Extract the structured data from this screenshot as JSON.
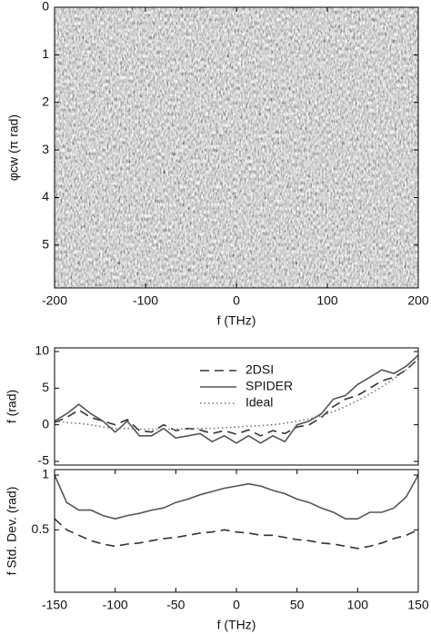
{
  "chart_data": [
    {
      "type": "heatmap",
      "xlabel": "f (THz)",
      "ylabel": "φcw (π rad)",
      "xlim": [
        -200,
        200
      ],
      "xticks": [
        -200,
        -100,
        0,
        100,
        200
      ],
      "ylim": [
        0,
        5.9
      ],
      "yticks": [
        0,
        1,
        2,
        3,
        4,
        5
      ],
      "y_inverted": true
    },
    {
      "type": "line",
      "ylabel": "f (rad)",
      "x": [
        -150,
        -140,
        -130,
        -120,
        -110,
        -100,
        -90,
        -80,
        -70,
        -60,
        -50,
        -40,
        -30,
        -20,
        -10,
        0,
        10,
        20,
        30,
        40,
        50,
        60,
        70,
        80,
        90,
        100,
        110,
        120,
        130,
        140,
        150
      ],
      "xlim": [
        -150,
        150
      ],
      "ylim": [
        -5.5,
        10.5
      ],
      "yticks": [
        -5,
        0,
        5,
        10
      ],
      "legend": "top",
      "series": [
        {
          "name": "2DSI",
          "color": "#333333",
          "linestyle": "dashed",
          "values": [
            0.3,
            1,
            2,
            1,
            0.5,
            0,
            0.7,
            -0.8,
            -1,
            0,
            -0.8,
            -0.5,
            -0.7,
            -1.2,
            -0.8,
            -1.3,
            -0.7,
            -1.5,
            -0.8,
            -1.2,
            -0.3,
            0,
            1,
            2.5,
            3.5,
            4,
            5,
            6,
            6.5,
            7.5,
            9
          ]
        },
        {
          "name": "SPIDER",
          "color": "#555555",
          "linestyle": "solid",
          "values": [
            0.5,
            1.5,
            2.8,
            1.5,
            0.5,
            -1,
            0.5,
            -1.5,
            -1.5,
            -0.5,
            -1.8,
            -1.5,
            -1.2,
            -2.3,
            -1.5,
            -2.5,
            -1.5,
            -2.5,
            -1.5,
            -2.3,
            0,
            0.5,
            1.5,
            3.5,
            4,
            5.5,
            6.5,
            7.5,
            7,
            8,
            9.5
          ]
        },
        {
          "name": "Ideal",
          "color": "#777777",
          "linestyle": "dotted",
          "values": [
            0.5,
            0.3,
            0.2,
            0,
            -0.3,
            -0.5,
            -0.5,
            -0.6,
            -0.6,
            -0.6,
            -0.6,
            -0.5,
            -0.5,
            -0.5,
            -0.4,
            -0.3,
            -0.2,
            -0.1,
            0,
            0.2,
            0.5,
            0.8,
            1.2,
            1.8,
            2.5,
            3.3,
            4.2,
            5.2,
            6.3,
            7.5,
            9
          ]
        }
      ]
    },
    {
      "type": "line",
      "ylabel": "f Std. Dev. (rad)",
      "xlabel": "f (THz)",
      "x": [
        -150,
        -140,
        -130,
        -120,
        -110,
        -100,
        -90,
        -80,
        -70,
        -60,
        -50,
        -40,
        -30,
        -20,
        -10,
        0,
        10,
        20,
        30,
        40,
        50,
        60,
        70,
        80,
        90,
        100,
        110,
        120,
        130,
        140,
        150
      ],
      "xlim": [
        -150,
        150
      ],
      "xticks": [
        -150,
        -100,
        -50,
        0,
        50,
        100,
        150
      ],
      "ylim": [
        -0.07,
        1.05
      ],
      "yticks": [
        0.5,
        1
      ],
      "series": [
        {
          "color": "#555555",
          "linestyle": "solid",
          "values": [
            1.0,
            0.75,
            0.68,
            0.68,
            0.63,
            0.6,
            0.63,
            0.65,
            0.68,
            0.7,
            0.75,
            0.78,
            0.82,
            0.85,
            0.88,
            0.9,
            0.92,
            0.9,
            0.86,
            0.83,
            0.78,
            0.75,
            0.7,
            0.66,
            0.6,
            0.6,
            0.66,
            0.66,
            0.7,
            0.8,
            1.0
          ]
        },
        {
          "color": "#333333",
          "linestyle": "dashed",
          "values": [
            0.6,
            0.5,
            0.45,
            0.4,
            0.37,
            0.35,
            0.37,
            0.38,
            0.4,
            0.42,
            0.43,
            0.45,
            0.47,
            0.48,
            0.5,
            0.48,
            0.47,
            0.45,
            0.45,
            0.43,
            0.41,
            0.4,
            0.38,
            0.37,
            0.35,
            0.33,
            0.35,
            0.38,
            0.42,
            0.45,
            0.5
          ]
        }
      ]
    }
  ]
}
